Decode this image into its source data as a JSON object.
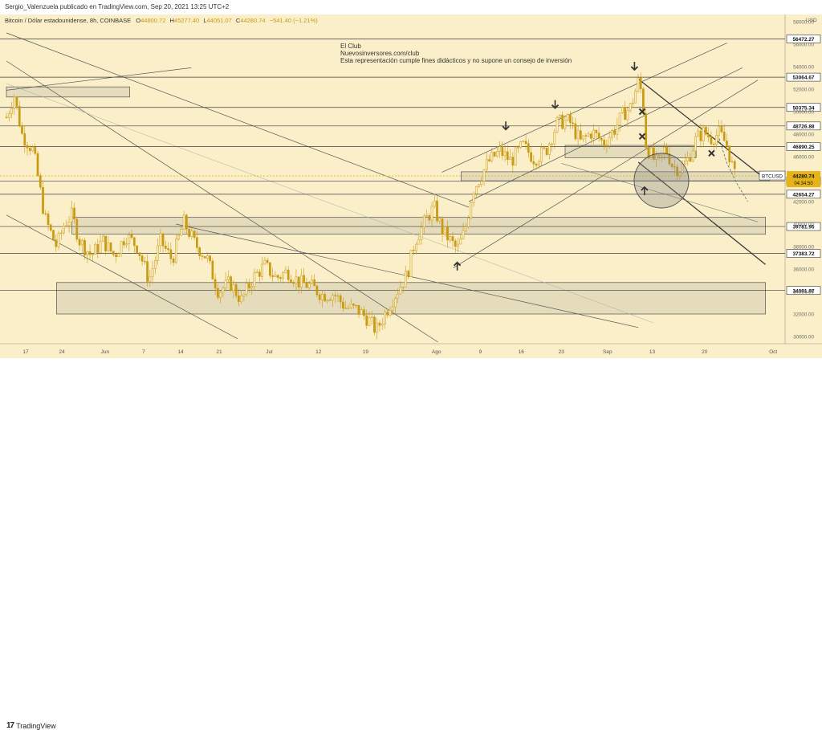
{
  "header": {
    "publish_line": "Sergio_Valenzuela publicado en TradingView.com, Sep 20, 2021 13:25 UTC+2",
    "symbol_line": "Bitcoin / Dólar estadounidense, 8h, COINBASE",
    "ohlc": {
      "O": "44800.72",
      "H": "45277.40",
      "L": "44051.07",
      "C": "44280.74",
      "change": "−541.40 (−1.21%)"
    }
  },
  "annotation": {
    "line1": "El Club",
    "line2": "Nuevosinversores.com/club",
    "line3": "Esta representación cumple fines didácticos y no supone un consejo de inversión"
  },
  "footer": {
    "brand": "TradingView"
  },
  "chart_data": {
    "type": "candlestick",
    "symbol": "BTCUSD",
    "currency_label": "USD",
    "ylim": [
      29500,
      58500
    ],
    "ytick_labels": [
      "58000.00",
      "56000.00",
      "54000.00",
      "52000.00",
      "50000.00",
      "48000.00",
      "46000.00",
      "44000.00",
      "42000.00",
      "40000.00",
      "38000.00",
      "36000.00",
      "34000.00",
      "32000.00",
      "30000.00"
    ],
    "xtick_labels": [
      "17",
      "24",
      "Jun",
      "7",
      "14",
      "21",
      "Jul",
      "12",
      "19",
      "Ago",
      "9",
      "16",
      "23",
      "Sep",
      "13",
      "20",
      "Oct"
    ],
    "price_levels": [
      {
        "label": "56472.27",
        "value": 56472.27
      },
      {
        "label": "53064.67",
        "value": 53064.67
      },
      {
        "label": "50375.34",
        "value": 50375.34
      },
      {
        "label": "48726.88",
        "value": 48726.88
      },
      {
        "label": "46890.25",
        "value": 46890.25
      },
      {
        "label": "43825.68",
        "value": 43825.68
      },
      {
        "label": "42654.27",
        "value": 42654.27
      },
      {
        "label": "39781.95",
        "value": 39781.95
      },
      {
        "label": "37383.72",
        "value": 37383.72
      },
      {
        "label": "34091.97",
        "value": 34091.97
      }
    ],
    "last_price": {
      "symbol": "BTCUSD",
      "value_label": "44280.74",
      "countdown": "04:34:50",
      "value": 44280.74
    },
    "close_path_points": [
      [
        0.0,
        49500
      ],
      [
        0.01,
        51500
      ],
      [
        0.02,
        48000
      ],
      [
        0.035,
        46500
      ],
      [
        0.05,
        40500
      ],
      [
        0.065,
        38000
      ],
      [
        0.075,
        40000
      ],
      [
        0.085,
        40800
      ],
      [
        0.095,
        38500
      ],
      [
        0.11,
        37200
      ],
      [
        0.125,
        38500
      ],
      [
        0.14,
        37200
      ],
      [
        0.155,
        39000
      ],
      [
        0.17,
        38000
      ],
      [
        0.185,
        35000
      ],
      [
        0.2,
        38500
      ],
      [
        0.215,
        36800
      ],
      [
        0.23,
        40200
      ],
      [
        0.245,
        38200
      ],
      [
        0.26,
        37000
      ],
      [
        0.275,
        34000
      ],
      [
        0.29,
        34800
      ],
      [
        0.305,
        33200
      ],
      [
        0.32,
        35200
      ],
      [
        0.335,
        36300
      ],
      [
        0.35,
        35200
      ],
      [
        0.365,
        35800
      ],
      [
        0.38,
        34800
      ],
      [
        0.395,
        34500
      ],
      [
        0.41,
        33700
      ],
      [
        0.425,
        33800
      ],
      [
        0.44,
        32600
      ],
      [
        0.455,
        32400
      ],
      [
        0.47,
        31500
      ],
      [
        0.48,
        30500
      ],
      [
        0.49,
        31900
      ],
      [
        0.505,
        33800
      ],
      [
        0.52,
        35500
      ],
      [
        0.53,
        38500
      ],
      [
        0.545,
        40500
      ],
      [
        0.555,
        41500
      ],
      [
        0.565,
        39500
      ],
      [
        0.575,
        38600
      ],
      [
        0.585,
        37700
      ],
      [
        0.595,
        39400
      ],
      [
        0.605,
        43000
      ],
      [
        0.615,
        44200
      ],
      [
        0.625,
        45500
      ],
      [
        0.64,
        46500
      ],
      [
        0.655,
        45600
      ],
      [
        0.67,
        47000
      ],
      [
        0.685,
        45800
      ],
      [
        0.7,
        46500
      ],
      [
        0.715,
        49000
      ],
      [
        0.73,
        49200
      ],
      [
        0.745,
        47300
      ],
      [
        0.76,
        48200
      ],
      [
        0.775,
        47200
      ],
      [
        0.79,
        48500
      ],
      [
        0.8,
        49800
      ],
      [
        0.81,
        50400
      ],
      [
        0.82,
        52700
      ],
      [
        0.825,
        51500
      ],
      [
        0.83,
        47000
      ],
      [
        0.835,
        46300
      ],
      [
        0.845,
        45300
      ],
      [
        0.855,
        46800
      ],
      [
        0.865,
        45100
      ],
      [
        0.875,
        44900
      ],
      [
        0.885,
        45800
      ],
      [
        0.895,
        47600
      ],
      [
        0.905,
        48200
      ],
      [
        0.915,
        47600
      ],
      [
        0.925,
        48100
      ],
      [
        0.935,
        47000
      ],
      [
        0.945,
        44280
      ]
    ],
    "zones": [
      {
        "x0": 0.0,
        "x1": 0.16,
        "y0": 51300,
        "y1": 52200
      },
      {
        "x0": 0.085,
        "x1": 0.985,
        "y0": 39100,
        "y1": 40600
      },
      {
        "x0": 0.065,
        "x1": 0.985,
        "y0": 32000,
        "y1": 34800
      },
      {
        "x0": 0.59,
        "x1": 0.99,
        "y0": 43850,
        "y1": 44650
      },
      {
        "x0": 0.725,
        "x1": 0.895,
        "y0": 45900,
        "y1": 47000
      }
    ],
    "markers": [
      {
        "type": "arrow-down",
        "x": 0.648,
        "y": 48700
      },
      {
        "type": "arrow-down",
        "x": 0.712,
        "y": 50600
      },
      {
        "type": "arrow-down",
        "x": 0.815,
        "y": 54000
      },
      {
        "type": "arrow-up",
        "x": 0.585,
        "y": 36300
      },
      {
        "type": "arrow-up",
        "x": 0.828,
        "y": 43000
      },
      {
        "type": "cross",
        "x": 0.825,
        "y": 50000
      },
      {
        "type": "cross",
        "x": 0.825,
        "y": 47800
      },
      {
        "type": "cross",
        "x": 0.915,
        "y": 46300
      }
    ],
    "colors": {
      "background": "#fbefc9",
      "candle": "#c99a13",
      "levels": "#3d3d3d",
      "zone_fill": "#ddd5b6",
      "zone_stroke": "#555555",
      "last_price": "#e6b41a"
    }
  }
}
